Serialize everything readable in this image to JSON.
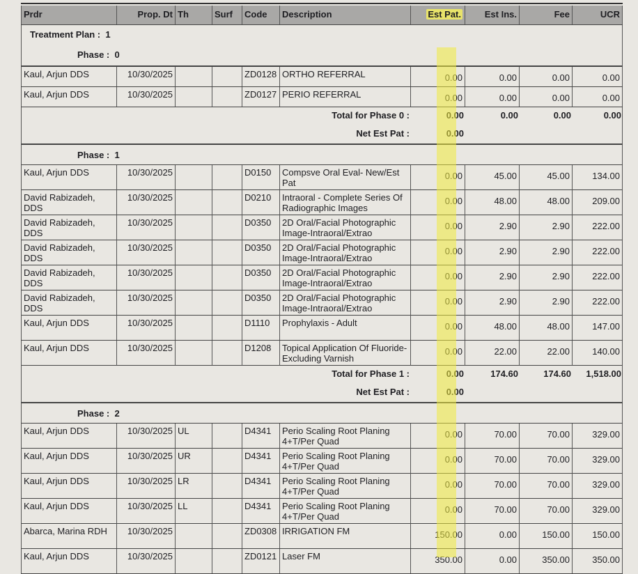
{
  "columns": [
    "Prdr",
    "Prop. Dt",
    "Th",
    "Surf",
    "Code",
    "Description",
    "Est Pat.",
    "Est Ins.",
    "Fee",
    "UCR"
  ],
  "plan": {
    "label": "Treatment Plan :",
    "value": "1"
  },
  "phases": [
    {
      "label": "Phase :",
      "value": "0",
      "rows": [
        [
          "Kaul, Arjun DDS",
          "10/30/2025",
          "",
          "",
          "ZD0128",
          "ORTHO REFERRAL",
          "0.00",
          "0.00",
          "0.00",
          "0.00"
        ],
        [
          "Kaul, Arjun DDS",
          "10/30/2025",
          "",
          "",
          "ZD0127",
          "PERIO REFERRAL",
          "0.00",
          "0.00",
          "0.00",
          "0.00"
        ]
      ],
      "total_label": "Total for Phase 0 :",
      "total": [
        "0.00",
        "0.00",
        "0.00",
        "0.00"
      ],
      "net_label": "Net Est Pat :",
      "net": "0.00"
    },
    {
      "label": "Phase :",
      "value": "1",
      "rows": [
        [
          "Kaul, Arjun DDS",
          "10/30/2025",
          "",
          "",
          "D0150",
          "Compsve Oral Eval- New/Est Pat",
          "0.00",
          "45.00",
          "45.00",
          "134.00"
        ],
        [
          "David Rabizadeh, DDS",
          "10/30/2025",
          "",
          "",
          "D0210",
          "Intraoral - Complete Series Of Radiographic Images",
          "0.00",
          "48.00",
          "48.00",
          "209.00"
        ],
        [
          "David Rabizadeh, DDS",
          "10/30/2025",
          "",
          "",
          "D0350",
          "2D Oral/Facial Photographic Image-Intraoral/Extrao",
          "0.00",
          "2.90",
          "2.90",
          "222.00"
        ],
        [
          "David Rabizadeh, DDS",
          "10/30/2025",
          "",
          "",
          "D0350",
          "2D Oral/Facial Photographic Image-Intraoral/Extrao",
          "0.00",
          "2.90",
          "2.90",
          "222.00"
        ],
        [
          "David Rabizadeh, DDS",
          "10/30/2025",
          "",
          "",
          "D0350",
          "2D Oral/Facial Photographic Image-Intraoral/Extrao",
          "0.00",
          "2.90",
          "2.90",
          "222.00"
        ],
        [
          "David Rabizadeh, DDS",
          "10/30/2025",
          "",
          "",
          "D0350",
          "2D Oral/Facial Photographic Image-Intraoral/Extrao",
          "0.00",
          "2.90",
          "2.90",
          "222.00"
        ],
        [
          "Kaul, Arjun DDS",
          "10/30/2025",
          "",
          "",
          "D1110",
          "Prophylaxis - Adult",
          "0.00",
          "48.00",
          "48.00",
          "147.00"
        ],
        [
          "Kaul, Arjun DDS",
          "10/30/2025",
          "",
          "",
          "D1208",
          "Topical Application Of Fluoride-Excluding Varnish",
          "0.00",
          "22.00",
          "22.00",
          "140.00"
        ]
      ],
      "total_label": "Total for Phase 1 :",
      "total": [
        "0.00",
        "174.60",
        "174.60",
        "1,518.00"
      ],
      "net_label": "Net Est Pat :",
      "net": "0.00"
    },
    {
      "label": "Phase :",
      "value": "2",
      "rows": [
        [
          "Kaul, Arjun DDS",
          "10/30/2025",
          "UL",
          "",
          "D4341",
          "Perio Scaling Root Planing 4+T/Per Quad",
          "0.00",
          "70.00",
          "70.00",
          "329.00"
        ],
        [
          "Kaul, Arjun DDS",
          "10/30/2025",
          "UR",
          "",
          "D4341",
          "Perio Scaling Root Planing 4+T/Per Quad",
          "0.00",
          "70.00",
          "70.00",
          "329.00"
        ],
        [
          "Kaul, Arjun DDS",
          "10/30/2025",
          "LR",
          "",
          "D4341",
          "Perio Scaling Root Planing 4+T/Per Quad",
          "0.00",
          "70.00",
          "70.00",
          "329.00"
        ],
        [
          "Kaul, Arjun DDS",
          "10/30/2025",
          "LL",
          "",
          "D4341",
          "Perio Scaling Root Planing 4+T/Per Quad",
          "0.00",
          "70.00",
          "70.00",
          "329.00"
        ],
        [
          "Abarca, Marina RDH",
          "10/30/2025",
          "",
          "",
          "ZD0308",
          "IRRIGATION FM",
          "150.00",
          "0.00",
          "150.00",
          "150.00"
        ],
        [
          "Kaul, Arjun DDS",
          "10/30/2025",
          "",
          "",
          "ZD0121",
          "Laser FM",
          "350.00",
          "0.00",
          "350.00",
          "350.00"
        ]
      ]
    }
  ],
  "highlight_color": "#e8e36a"
}
